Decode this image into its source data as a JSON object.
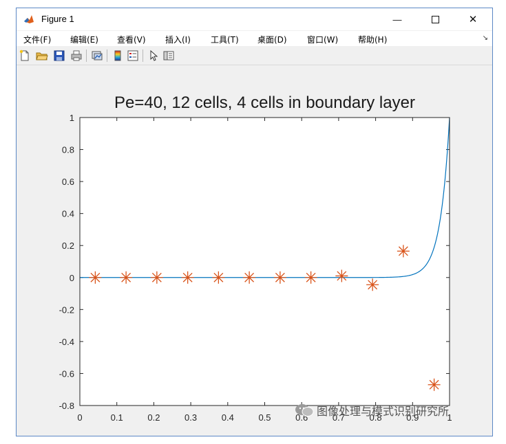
{
  "window": {
    "title": "Figure 1",
    "minimize_glyph": "—",
    "close_glyph": "✕"
  },
  "menu": {
    "items": [
      "文件(F)",
      "编辑(E)",
      "查看(V)",
      "插入(I)",
      "工具(T)",
      "桌面(D)",
      "窗口(W)",
      "帮助(H)"
    ],
    "overflow_arrow": "↘"
  },
  "toolbar": {
    "icons": [
      "new-figure-icon",
      "open-file-icon",
      "save-icon",
      "print-icon",
      "link-plot-icon",
      "insert-colorbar-icon",
      "insert-legend-icon",
      "edit-plot-arrow-icon",
      "property-inspector-icon"
    ]
  },
  "chart_data": {
    "type": "line",
    "title": "Pe=40,  12 cells,  4 cells in boundary layer",
    "xlim": [
      0,
      1
    ],
    "ylim": [
      -0.8,
      1
    ],
    "xticks": [
      "0",
      "0.1",
      "0.2",
      "0.3",
      "0.4",
      "0.5",
      "0.6",
      "0.7",
      "0.8",
      "0.9",
      "1"
    ],
    "yticks": [
      "-0.8",
      "-0.6",
      "-0.4",
      "-0.2",
      "0",
      "0.2",
      "0.4",
      "0.6",
      "0.8",
      "1"
    ],
    "grid": false,
    "series": [
      {
        "kind": "line",
        "color": "#0072bd",
        "function": "(exp(40*x)-1)/(exp(40)-1)"
      },
      {
        "kind": "markers",
        "marker": "asterisk",
        "color": "#d95319",
        "x": [
          0.0417,
          0.125,
          0.2083,
          0.2917,
          0.375,
          0.4583,
          0.5417,
          0.625,
          0.7083,
          0.7917,
          0.875,
          0.9583
        ],
        "y": [
          0,
          0,
          0,
          0,
          0,
          0,
          0,
          0,
          0.01,
          -0.045,
          0.165,
          -0.67
        ]
      }
    ]
  },
  "watermark": {
    "text": "图像处理与模式识别研究所"
  }
}
